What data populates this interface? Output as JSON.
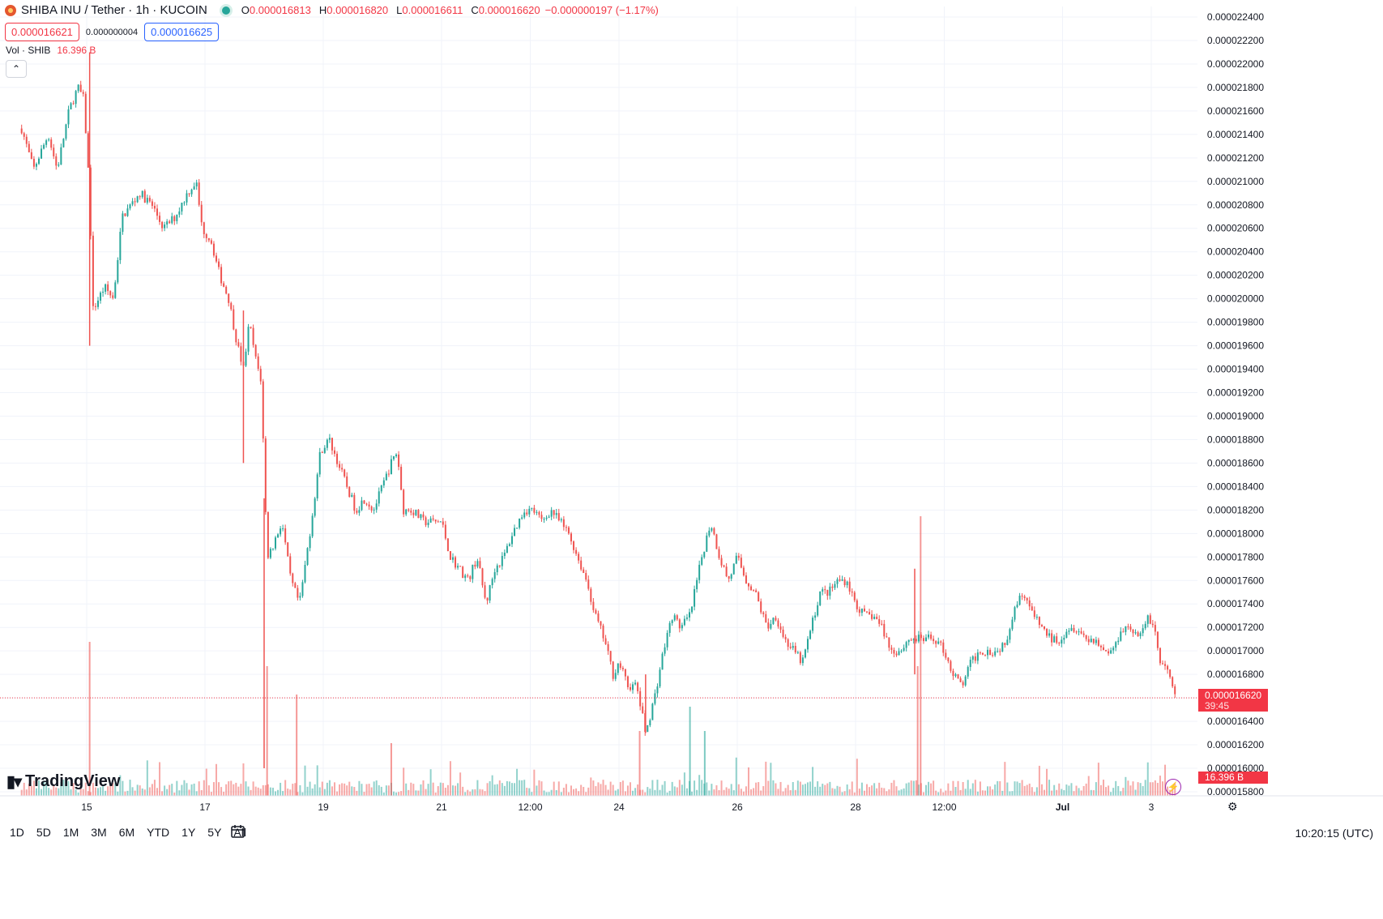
{
  "header": {
    "symbol": "SHIBA INU / Tether · 1h · KUCOIN",
    "open_label": "O",
    "open": "0.000016813",
    "high_label": "H",
    "high": "0.000016820",
    "low_label": "L",
    "low": "0.000016611",
    "close_label": "C",
    "close": "0.000016620",
    "change": "−0.000000197 (−1.17%)"
  },
  "prices": {
    "bid": "0.000016621",
    "spread": "0.000000004",
    "ask": "0.000016625"
  },
  "volume": {
    "label": "Vol · SHIB",
    "value": "16.396 B"
  },
  "collapse_glyph": "⌃",
  "brand": "TradingView",
  "last_price_label": {
    "price": "0.000016620",
    "countdown": "39:45"
  },
  "last_volume_label": "16.396 B",
  "ranges": [
    "1D",
    "5D",
    "1M",
    "3M",
    "6M",
    "YTD",
    "1Y",
    "5Y",
    "All"
  ],
  "clock": "10:20:15 (UTC)",
  "colors": {
    "up": "#26a69a",
    "down": "#ef5350",
    "grid": "#f0f3fa",
    "last": "#f23645"
  },
  "chart_data": {
    "type": "candlestick",
    "y_axis": {
      "min": 1.57e-05,
      "max": 2.25e-05,
      "scale": "linear",
      "ticks": [
        "0.000022400",
        "0.000022200",
        "0.000022000",
        "0.000021800",
        "0.000021600",
        "0.000021400",
        "0.000021200",
        "0.000021000",
        "0.000020800",
        "0.000020600",
        "0.000020400",
        "0.000020200",
        "0.000020000",
        "0.000019800",
        "0.000019600",
        "0.000019400",
        "0.000019200",
        "0.000019000",
        "0.000018800",
        "0.000018600",
        "0.000018400",
        "0.000018200",
        "0.000018000",
        "0.000017800",
        "0.000017600",
        "0.000017400",
        "0.000017200",
        "0.000017000",
        "0.000016800",
        "0.000016600",
        "0.000016400",
        "0.000016200",
        "0.000016000",
        "0.000015800"
      ]
    },
    "x_axis": {
      "ticks": [
        "15",
        "17",
        "19",
        "21",
        "12:00",
        "24",
        "26",
        "28",
        "12:00",
        "Jul",
        "3"
      ]
    },
    "series_path": [
      [
        13.9,
        2.145e-05
      ],
      [
        14.1,
        2.11e-05
      ],
      [
        14.35,
        2.14e-05
      ],
      [
        14.5,
        2.11e-05
      ],
      [
        14.7,
        2.16e-05
      ],
      [
        14.85,
        2.18e-05
      ],
      [
        14.95,
        2.17e-05
      ],
      [
        15.05,
        2.09e-05
      ],
      [
        15.1,
        1.99e-05
      ],
      [
        15.3,
        2.01e-05
      ],
      [
        15.45,
        2e-05
      ],
      [
        15.6,
        2.07e-05
      ],
      [
        15.75,
        2.08e-05
      ],
      [
        15.9,
        2.09e-05
      ],
      [
        16.1,
        2.08e-05
      ],
      [
        16.3,
        2.06e-05
      ],
      [
        16.5,
        2.07e-05
      ],
      [
        16.7,
        2.09e-05
      ],
      [
        16.85,
        2.1e-05
      ],
      [
        16.95,
        2.06e-05
      ],
      [
        17.1,
        2.05e-05
      ],
      [
        17.25,
        2.02e-05
      ],
      [
        17.4,
        2e-05
      ],
      [
        17.55,
        1.96e-05
      ],
      [
        17.65,
        1.94e-05
      ],
      [
        17.75,
        1.98e-05
      ],
      [
        17.85,
        1.95e-05
      ],
      [
        17.95,
        1.93e-05
      ],
      [
        18.05,
        1.78e-05
      ],
      [
        18.15,
        1.79e-05
      ],
      [
        18.3,
        1.81e-05
      ],
      [
        18.45,
        1.76e-05
      ],
      [
        18.6,
        1.74e-05
      ],
      [
        18.8,
        1.81e-05
      ],
      [
        18.95,
        1.87e-05
      ],
      [
        19.1,
        1.88e-05
      ],
      [
        19.25,
        1.86e-05
      ],
      [
        19.4,
        1.84e-05
      ],
      [
        19.55,
        1.82e-05
      ],
      [
        19.7,
        1.83e-05
      ],
      [
        19.85,
        1.82e-05
      ],
      [
        20.0,
        1.84e-05
      ],
      [
        20.15,
        1.86e-05
      ],
      [
        20.25,
        1.87e-05
      ],
      [
        20.35,
        1.82e-05
      ],
      [
        20.5,
        1.82e-05
      ],
      [
        20.7,
        1.81e-05
      ],
      [
        20.85,
        1.81e-05
      ],
      [
        21.0,
        1.81e-05
      ],
      [
        21.15,
        1.78e-05
      ],
      [
        21.3,
        1.77e-05
      ],
      [
        21.45,
        1.76e-05
      ],
      [
        21.6,
        1.78e-05
      ],
      [
        21.75,
        1.74e-05
      ],
      [
        21.9,
        1.77e-05
      ],
      [
        22.05,
        1.78e-05
      ],
      [
        22.2,
        1.8e-05
      ],
      [
        22.4,
        1.82e-05
      ],
      [
        22.55,
        1.82e-05
      ],
      [
        22.7,
        1.81e-05
      ],
      [
        22.85,
        1.82e-05
      ],
      [
        23.0,
        1.81e-05
      ],
      [
        23.15,
        1.8e-05
      ],
      [
        23.3,
        1.78e-05
      ],
      [
        23.45,
        1.76e-05
      ],
      [
        23.6,
        1.73e-05
      ],
      [
        23.75,
        1.71e-05
      ],
      [
        23.9,
        1.68e-05
      ],
      [
        24.0,
        1.69e-05
      ],
      [
        24.15,
        1.67e-05
      ],
      [
        24.3,
        1.67e-05
      ],
      [
        24.45,
        1.63e-05
      ],
      [
        24.6,
        1.66e-05
      ],
      [
        24.75,
        1.7e-05
      ],
      [
        24.9,
        1.73e-05
      ],
      [
        25.05,
        1.72e-05
      ],
      [
        25.2,
        1.73e-05
      ],
      [
        25.4,
        1.78e-05
      ],
      [
        25.55,
        1.81e-05
      ],
      [
        25.7,
        1.78e-05
      ],
      [
        25.85,
        1.76e-05
      ],
      [
        26.0,
        1.78e-05
      ],
      [
        26.15,
        1.76e-05
      ],
      [
        26.3,
        1.75e-05
      ],
      [
        26.5,
        1.72e-05
      ],
      [
        26.65,
        1.73e-05
      ],
      [
        26.8,
        1.71e-05
      ],
      [
        26.95,
        1.7e-05
      ],
      [
        27.1,
        1.69e-05
      ],
      [
        27.25,
        1.72e-05
      ],
      [
        27.4,
        1.75e-05
      ],
      [
        27.55,
        1.75e-05
      ],
      [
        27.7,
        1.76e-05
      ],
      [
        27.85,
        1.76e-05
      ],
      [
        28.0,
        1.74e-05
      ],
      [
        28.15,
        1.73e-05
      ],
      [
        28.3,
        1.73e-05
      ],
      [
        28.45,
        1.72e-05
      ],
      [
        28.6,
        1.7e-05
      ],
      [
        28.75,
        1.7e-05
      ],
      [
        28.9,
        1.71e-05
      ],
      [
        29.05,
        1.71e-05
      ],
      [
        29.2,
        1.71e-05
      ],
      [
        29.35,
        1.71e-05
      ],
      [
        29.5,
        1.7e-05
      ],
      [
        29.65,
        1.68e-05
      ],
      [
        29.8,
        1.67e-05
      ],
      [
        29.95,
        1.69e-05
      ],
      [
        30.1,
        1.7e-05
      ],
      [
        30.25,
        1.7e-05
      ],
      [
        30.4,
        1.7e-05
      ],
      [
        30.55,
        1.71e-05
      ],
      [
        30.7,
        1.74e-05
      ],
      [
        30.85,
        1.75e-05
      ],
      [
        31.0,
        1.73e-05
      ],
      [
        31.15,
        1.72e-05
      ],
      [
        31.3,
        1.71e-05
      ],
      [
        31.45,
        1.71e-05
      ],
      [
        31.6,
        1.72e-05
      ],
      [
        31.75,
        1.72e-05
      ],
      [
        31.9,
        1.71e-05
      ],
      [
        32.05,
        1.71e-05
      ],
      [
        32.2,
        1.7e-05
      ],
      [
        32.35,
        1.7e-05
      ],
      [
        32.5,
        1.72e-05
      ],
      [
        32.65,
        1.72e-05
      ],
      [
        32.8,
        1.71e-05
      ],
      [
        32.95,
        1.73e-05
      ],
      [
        33.05,
        1.72e-05
      ],
      [
        33.15,
        1.69e-05
      ],
      [
        33.3,
        1.68e-05
      ],
      [
        33.4,
        1.66e-05
      ]
    ],
    "spikes": [
      [
        15.05,
        2.21e-05,
        1.96e-05
      ],
      [
        18.0,
        1.83e-05,
        1.6e-05
      ],
      [
        17.65,
        1.99e-05,
        1.86e-05
      ],
      [
        24.45,
        1.68e-05,
        1.63e-05
      ],
      [
        29.0,
        1.77e-05,
        1.68e-05
      ]
    ],
    "volume_spikes": [
      15.05,
      18.05,
      18.55,
      20.15,
      24.35,
      25.2,
      25.45,
      29.1,
      29.05
    ],
    "last_price": 1.66e-05
  }
}
